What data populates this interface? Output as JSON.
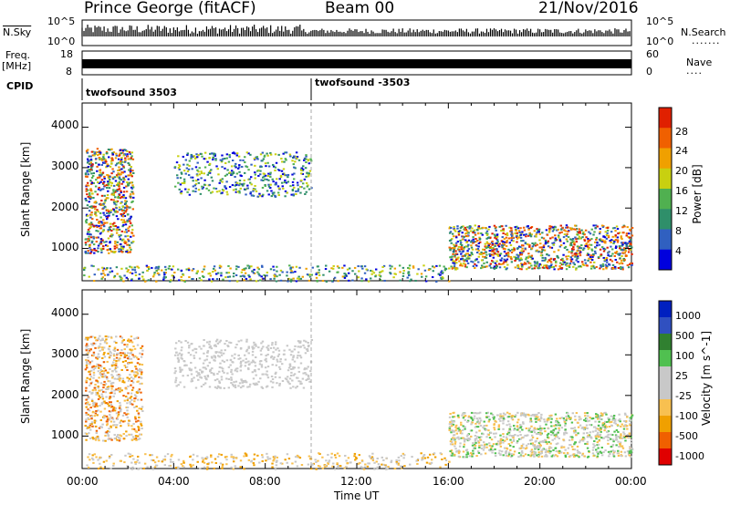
{
  "header": {
    "station": "Prince George (fitACF)",
    "beam": "Beam 00",
    "date": "21/Nov/2016"
  },
  "left_labels": {
    "nsky": "N.Sky",
    "freq": "Freq.",
    "freq_unit": "[MHz]",
    "cpid": "CPID"
  },
  "right_labels": {
    "nsearch": "N.Search",
    "nave": "Nave"
  },
  "strip_ticks": {
    "noise_top": "10^5",
    "noise_bottom": "10^0",
    "freq_top": "18",
    "freq_bottom": "8",
    "nave_top": "60",
    "nave_bottom": "0"
  },
  "cpid": {
    "mode1": "twofsound 3503",
    "mode2": "twofsound -3503"
  },
  "colors": {
    "power_scale": [
      "#0000dd",
      "#3060c0",
      "#2f8f6a",
      "#50b050",
      "#c8d010",
      "#f0a000",
      "#f06000",
      "#e02000"
    ],
    "velocity_scale": [
      "#e00000",
      "#f06000",
      "#f0a000",
      "#f8c050",
      "#c8c8c8",
      "#c8c8c8",
      "#50c050",
      "#308030",
      "#3050c0",
      "#0020c0"
    ]
  },
  "chart_data": [
    {
      "type": "heatmap",
      "panel": "power",
      "ylabel": "Slant Range [km]",
      "y_ticks": [
        "1000",
        "2000",
        "3000",
        "4000"
      ],
      "ylim": [
        200,
        4600
      ],
      "x_ticks": [
        "00:00",
        "04:00",
        "08:00",
        "12:00",
        "16:00",
        "20:00",
        "00:00"
      ],
      "xlim_hours": [
        0,
        24
      ],
      "colorbar": {
        "label": "Power [dB]",
        "ticks": [
          "4",
          "8",
          "12",
          "16",
          "20",
          "24",
          "28"
        ],
        "range": [
          0,
          32
        ]
      }
    },
    {
      "type": "heatmap",
      "panel": "velocity",
      "ylabel": "Slant Range [km]",
      "y_ticks": [
        "1000",
        "2000",
        "3000",
        "4000"
      ],
      "ylim": [
        200,
        4600
      ],
      "x_ticks": [
        "00:00",
        "04:00",
        "08:00",
        "12:00",
        "16:00",
        "20:00",
        "00:00"
      ],
      "xlim_hours": [
        0,
        24
      ],
      "xlabel": "Time UT",
      "colorbar": {
        "label": "Velocity [m s^-1]",
        "ticks": [
          "1000",
          "500",
          "100",
          "25",
          "-25",
          "-100",
          "-500",
          "-1000"
        ]
      }
    }
  ]
}
